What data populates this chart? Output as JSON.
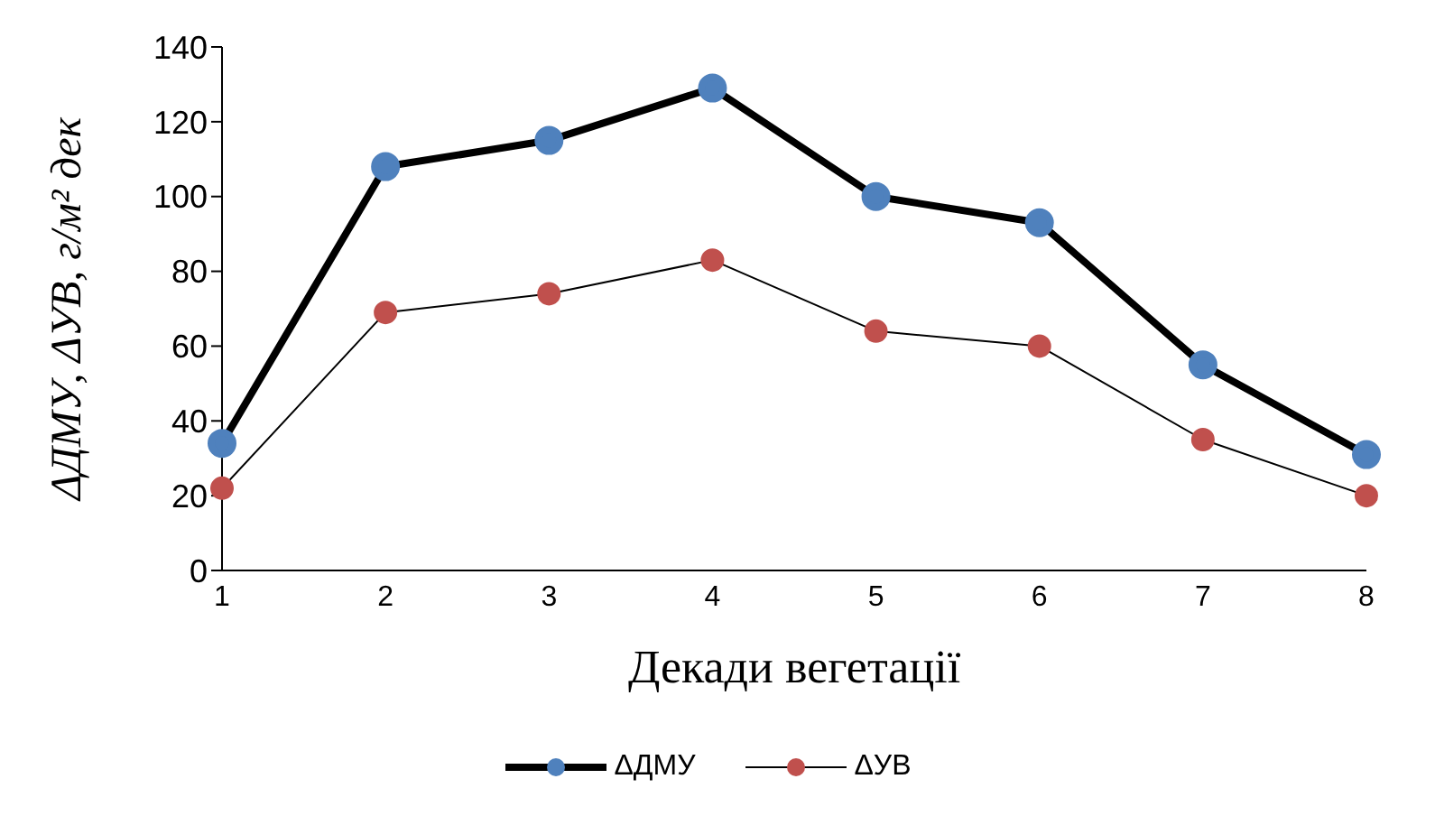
{
  "chart_data": {
    "type": "line",
    "xlabel": "Декади вегетації",
    "ylabel": "ΔДМУ, ΔУВ, г/м² дек",
    "categories": [
      "1",
      "2",
      "3",
      "4",
      "5",
      "6",
      "7",
      "8"
    ],
    "series": [
      {
        "name": "ΔДМУ",
        "color": "#4f81bd",
        "values": [
          34,
          108,
          115,
          129,
          100,
          93,
          55,
          31
        ]
      },
      {
        "name": "ΔУВ",
        "color": "#c0504d",
        "values": [
          22,
          69,
          74,
          83,
          64,
          60,
          35,
          20
        ]
      }
    ],
    "ylim": [
      0,
      140
    ],
    "yticks": [
      0,
      20,
      40,
      60,
      80,
      100,
      120,
      140
    ],
    "grid": false,
    "legend": "bottom",
    "marker": "circle",
    "line_style": "solid"
  }
}
